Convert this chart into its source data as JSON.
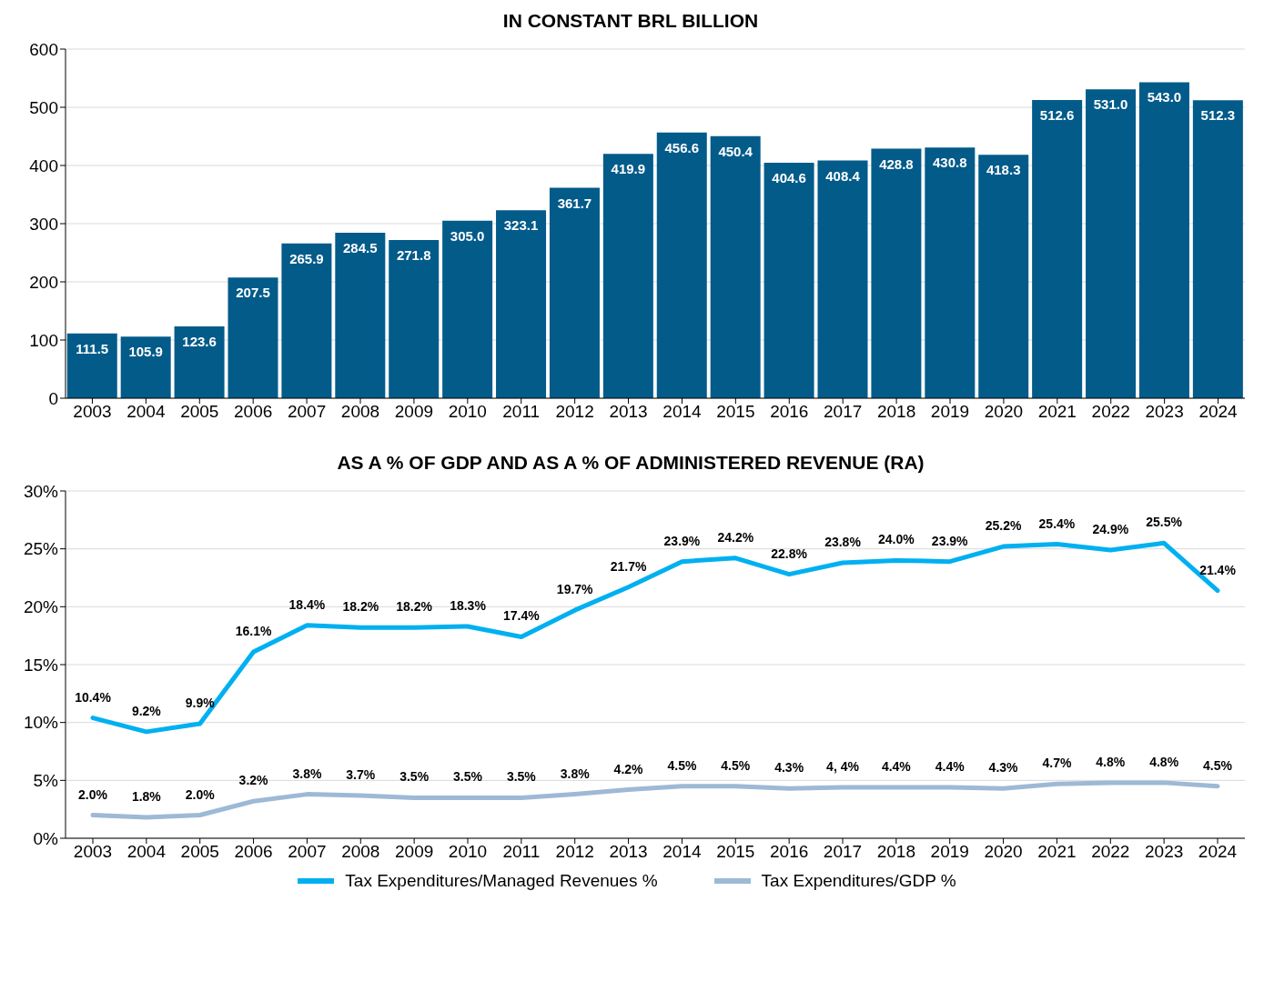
{
  "chart_data": [
    {
      "type": "bar",
      "title": "IN CONSTANT BRL BILLION",
      "categories": [
        "2003",
        "2004",
        "2005",
        "2006",
        "2007",
        "2008",
        "2009",
        "2010",
        "2011",
        "2012",
        "2013",
        "2014",
        "2015",
        "2016",
        "2017",
        "2018",
        "2019",
        "2020",
        "2021",
        "2022",
        "2023",
        "2024"
      ],
      "values": [
        111.5,
        105.9,
        123.6,
        207.5,
        265.9,
        284.5,
        271.8,
        305.0,
        323.1,
        361.7,
        419.9,
        456.6,
        450.4,
        404.6,
        408.4,
        428.8,
        430.8,
        418.3,
        512.6,
        531.0,
        543.0,
        512.3
      ],
      "value_labels": [
        "111.5",
        "105.9",
        "123.6",
        "207.5",
        "265.9",
        "284.5",
        "271.8",
        "305.0",
        "323.1",
        "361.7",
        "419.9",
        "456.6",
        "450.4",
        "404.6",
        "408.4",
        "428.8",
        "430.8",
        "418.3",
        "512.6",
        "531.0",
        "543.0",
        "512.3"
      ],
      "color": "#035b8a",
      "ylim": [
        0,
        600
      ],
      "yticks": [
        0,
        100,
        200,
        300,
        400,
        500,
        600
      ],
      "grid": "y",
      "legend": false
    },
    {
      "type": "line",
      "title": "AS A % OF GDP AND AS A % OF ADMINISTERED REVENUE (RA)",
      "categories": [
        "2003",
        "2004",
        "2005",
        "2006",
        "2007",
        "2008",
        "2009",
        "2010",
        "2011",
        "2012",
        "2013",
        "2014",
        "2015",
        "2016",
        "2017",
        "2018",
        "2019",
        "2020",
        "2021",
        "2022",
        "2023",
        "2024"
      ],
      "series": [
        {
          "name": "Tax Expenditures/Managed Revenues %",
          "color": "#00b0f0",
          "values": [
            10.4,
            9.2,
            9.9,
            16.1,
            18.4,
            18.2,
            18.2,
            18.3,
            17.4,
            19.7,
            21.7,
            23.9,
            24.2,
            22.8,
            23.8,
            24.0,
            23.9,
            25.2,
            25.4,
            24.9,
            25.5,
            21.4
          ],
          "value_labels": [
            "10.4%",
            "9.2%",
            "9.9%",
            "16.1%",
            "18.4%",
            "18.2%",
            "18.2%",
            "18.3%",
            "17.4%",
            "19.7%",
            "21.7%",
            "23.9%",
            "24.2%",
            "22.8%",
            "23.8%",
            "24.0%",
            "23.9%",
            "25.2%",
            "25.4%",
            "24.9%",
            "25.5%",
            "21.4%"
          ]
        },
        {
          "name": "Tax Expenditures/GDP %",
          "color": "#9db9d6",
          "values": [
            2.0,
            1.8,
            2.0,
            3.2,
            3.8,
            3.7,
            3.5,
            3.5,
            3.5,
            3.8,
            4.2,
            4.5,
            4.5,
            4.3,
            4.4,
            4.4,
            4.4,
            4.3,
            4.7,
            4.8,
            4.8,
            4.5
          ],
          "value_labels": [
            "2.0%",
            "1.8%",
            "2.0%",
            "3.2%",
            "3.8%",
            "3.7%",
            "3.5%",
            "3.5%",
            "3.5%",
            "3.8%",
            "4.2%",
            "4.5%",
            "4.5%",
            "4.3%",
            "4, 4%",
            "4.4%",
            "4.4%",
            "4.3%",
            "4.7%",
            "4.8%",
            "4.8%",
            "4.5%"
          ]
        }
      ],
      "ylim": [
        0,
        30
      ],
      "yticks": [
        {
          "value": 0,
          "label": "0%"
        },
        {
          "value": 5,
          "label": "5%"
        },
        {
          "value": 10,
          "label": "10%"
        },
        {
          "value": 15,
          "label": "15%"
        },
        {
          "value": 20,
          "label": "20%"
        },
        {
          "value": 25,
          "label": "25%"
        },
        {
          "value": 30,
          "label": "30%"
        }
      ],
      "grid": "y",
      "legend": "bottom",
      "marker": "none",
      "line_style": "solid"
    }
  ]
}
